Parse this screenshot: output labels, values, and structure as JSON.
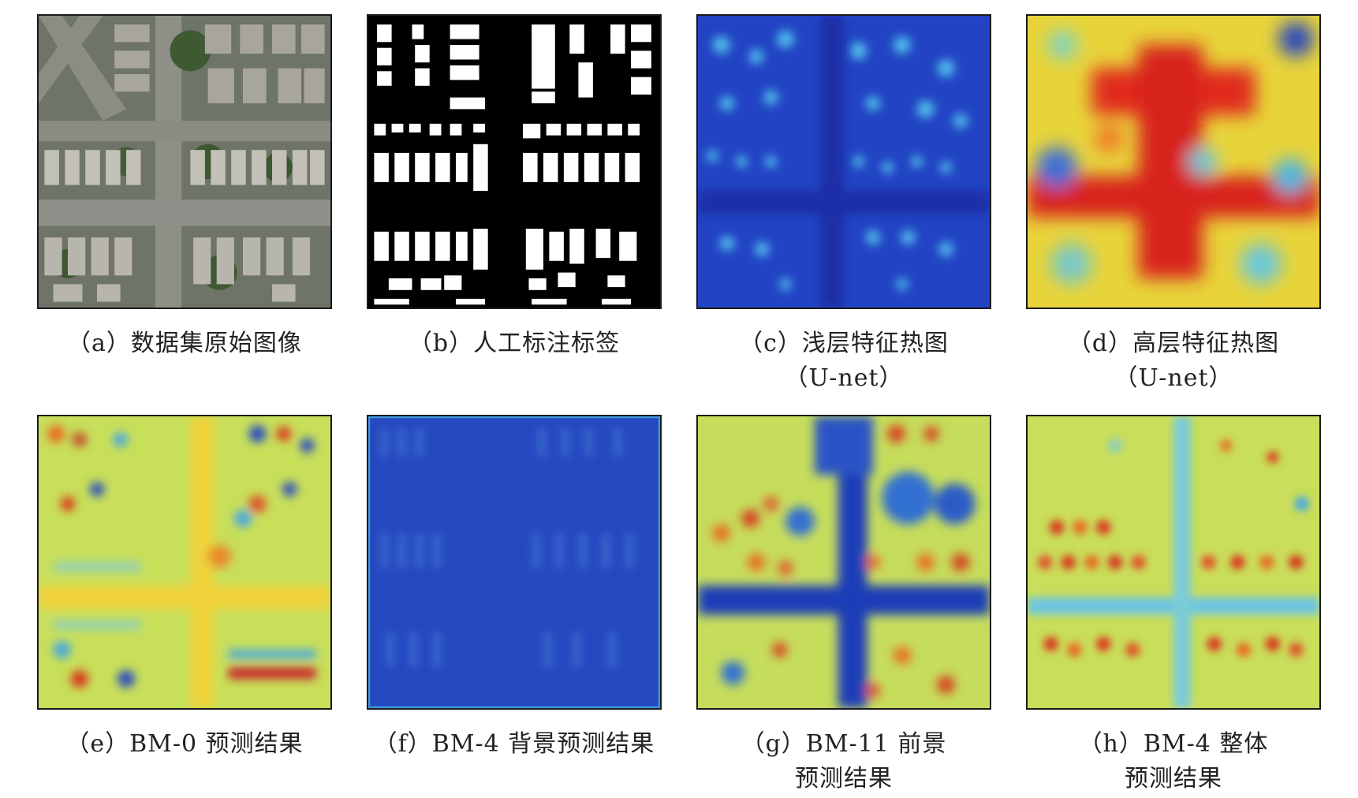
{
  "panels": [
    {
      "id": "a",
      "caption": [
        "（a）数据集原始图像"
      ],
      "kind": "aerial"
    },
    {
      "id": "b",
      "caption": [
        "（b）人工标注标签"
      ],
      "kind": "label"
    },
    {
      "id": "c",
      "caption": [
        "（c）浅层特征热图",
        "（U-net）"
      ],
      "kind": "heatmap-shallow"
    },
    {
      "id": "d",
      "caption": [
        "（d）高层特征热图",
        "（U-net）"
      ],
      "kind": "heatmap-high"
    },
    {
      "id": "e",
      "caption": [
        "（e）BM-0 预测结果"
      ],
      "kind": "heatmap-bm0"
    },
    {
      "id": "f",
      "caption": [
        "（f）BM-4 背景预测结果"
      ],
      "kind": "heatmap-bg"
    },
    {
      "id": "g",
      "caption": [
        "（g）BM-11 前景",
        "预测结果"
      ],
      "kind": "heatmap-fg"
    },
    {
      "id": "h",
      "caption": [
        "（h）BM-4 整体",
        "预测结果"
      ],
      "kind": "heatmap-whole"
    }
  ],
  "colors": {
    "jet_blue": "#1f3fbf",
    "jet_cyan": "#49c3e8",
    "jet_yellow": "#e8e23a",
    "jet_red": "#d8231a",
    "label_bg": "#000000",
    "label_fg": "#ffffff"
  }
}
